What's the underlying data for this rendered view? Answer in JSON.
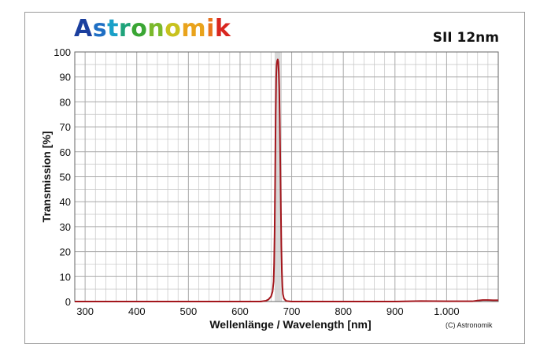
{
  "brand": {
    "logo_letters": [
      {
        "ch": "A",
        "color": "#1b3f9e"
      },
      {
        "ch": "s",
        "color": "#1f6fc4"
      },
      {
        "ch": "t",
        "color": "#1aa0c8"
      },
      {
        "ch": "r",
        "color": "#1fa37a"
      },
      {
        "ch": "o",
        "color": "#3aa634"
      },
      {
        "ch": "n",
        "color": "#7bb92c"
      },
      {
        "ch": "o",
        "color": "#c8c21e"
      },
      {
        "ch": "m",
        "color": "#e9a31c"
      },
      {
        "ch": "i",
        "color": "#e8731c"
      },
      {
        "ch": "k",
        "color": "#d9261f"
      }
    ]
  },
  "filter_name": "SII 12nm",
  "copyright": "(C) Astronomik",
  "chart_data": {
    "type": "line",
    "xlabel": "Wellenlänge / Wavelength [nm]",
    "ylabel": "Transmission [%]",
    "xlim": [
      280,
      1100
    ],
    "ylim": [
      0,
      100
    ],
    "x_ticks": [
      300,
      400,
      500,
      600,
      700,
      800,
      900,
      1000
    ],
    "x_tick_labels": [
      "300",
      "400",
      "500",
      "600",
      "700",
      "800",
      "900",
      "1.000"
    ],
    "y_ticks": [
      0,
      10,
      20,
      30,
      40,
      50,
      60,
      70,
      80,
      90,
      100
    ],
    "grid": true,
    "highlight_band": [
      667,
      679
    ],
    "colors": {
      "curve": "#a3161c",
      "band": "#c8c8c8",
      "grid": "#c4c4c4"
    },
    "series": [
      {
        "x": [
          280,
          400,
          500,
          600,
          640,
          650,
          655,
          660,
          663,
          665,
          666,
          667,
          668,
          669,
          670,
          671,
          672,
          673,
          674,
          675,
          676,
          677,
          678,
          679,
          680,
          681,
          682,
          683,
          685,
          688,
          690,
          700,
          800,
          900,
          950,
          1000,
          1050,
          1060,
          1070,
          1080,
          1090,
          1100
        ],
        "y": [
          0,
          0,
          0,
          0,
          0,
          0.3,
          0.8,
          2,
          4,
          8,
          15,
          28,
          50,
          75,
          90,
          95,
          96.5,
          97,
          96,
          92,
          85,
          72,
          55,
          38,
          22,
          12,
          6,
          3,
          1.2,
          0.5,
          0.2,
          0,
          0,
          0,
          0.2,
          0.1,
          0.1,
          0.4,
          0.6,
          0.6,
          0.5,
          0.5
        ]
      }
    ]
  }
}
